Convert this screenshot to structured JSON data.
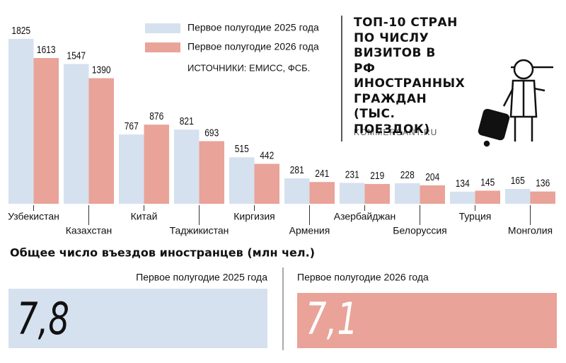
{
  "chart_data": [
    {
      "type": "bar",
      "title": "ТОП-10 СТРАН ПО ЧИСЛУ ВИЗИТОВ В РФ ИНОСТРАННЫХ ГРАЖДАН (ТЫС. ПОЕЗДОК)",
      "source": "ИСТОЧНИКИ: ЕМИСС, ФСБ.",
      "credit": "KOMMERSANT.RU",
      "categories": [
        "Узбекистан",
        "Казахстан",
        "Китай",
        "Таджикистан",
        "Киргизия",
        "Армения",
        "Азербайджан",
        "Белоруссия",
        "Турция",
        "Монголия"
      ],
      "series": [
        {
          "name": "Первое полугодие 2025 года",
          "color": "#d6e1ef",
          "values": [
            1825,
            1547,
            767,
            821,
            515,
            281,
            231,
            228,
            134,
            165
          ]
        },
        {
          "name": "Первое полугодие 2026 года",
          "color": "#e9a398",
          "values": [
            1613,
            1390,
            876,
            693,
            442,
            241,
            219,
            204,
            145,
            136
          ]
        }
      ]
    },
    {
      "type": "number",
      "title": "Общее число въездов иностранцев (млн чел.)",
      "categories": [
        "Первое полугодие 2025 года",
        "Первое полугодие 2026 года"
      ],
      "values": [
        7.8,
        7.1
      ],
      "value_labels": [
        "7,8",
        "7,1"
      ],
      "colors": [
        "#d6e1ef",
        "#e9a398"
      ],
      "text_colors": [
        "#111111",
        "#ffffff"
      ]
    }
  ]
}
